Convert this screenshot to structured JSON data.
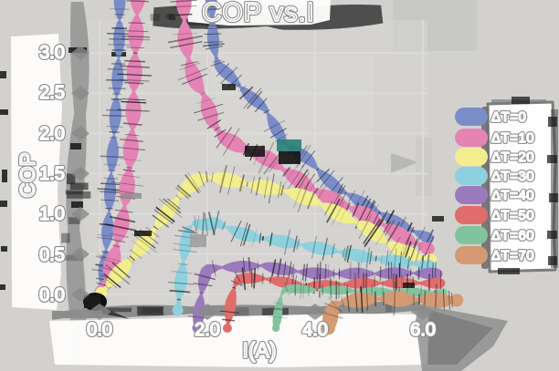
{
  "title": "COP vs.I",
  "axes": {
    "x_label": "I(A)",
    "y_label": "COP",
    "x_ticks": [
      "0.0",
      "2.0",
      "4.0",
      "6.0"
    ],
    "y_ticks": [
      "3.0",
      "2.5",
      "2.0",
      "1.5",
      "1.0",
      "0.5",
      "0.0"
    ]
  },
  "legend": [
    {
      "label": "ΔT=0",
      "color": "#7b8dc8"
    },
    {
      "label": "ΔT=10",
      "color": "#e583b4"
    },
    {
      "label": "ΔT=20",
      "color": "#f3ee8d"
    },
    {
      "label": "ΔT=30",
      "color": "#8ed1de"
    },
    {
      "label": "ΔT=40",
      "color": "#9b79bd"
    },
    {
      "label": "ΔT=50",
      "color": "#e06c6c"
    },
    {
      "label": "ΔT=60",
      "color": "#82c39e"
    },
    {
      "label": "ΔT=70",
      "color": "#d39a74"
    }
  ],
  "style": {
    "background": "#d2d1ce",
    "gridline": "#dcdbd8",
    "spine_dark": "#4e4e4e",
    "spine_light": "#9c9c9c",
    "text_outline": "#8d8d8d"
  },
  "chart_data": {
    "type": "line",
    "title": "COP vs.I",
    "xlabel": "I(A)",
    "ylabel": "COP",
    "xlim": [
      0,
      6.8
    ],
    "ylim": [
      0,
      3.0
    ],
    "grid": true,
    "legend_position": "right",
    "x_tick_values": [
      0,
      2,
      4,
      6
    ],
    "y_tick_values": [
      0,
      0.5,
      1,
      1.5,
      2,
      2.5,
      3
    ],
    "series": [
      {
        "name": "ΔT=0",
        "color": "#7b8dc8",
        "width": 13,
        "segments": [
          [
            [
              0.03,
              0.02
            ],
            [
              0.12,
              0.45
            ],
            [
              0.2,
              1.0
            ],
            [
              0.25,
              1.6
            ],
            [
              0.29,
              2.2
            ],
            [
              0.33,
              3.0
            ],
            [
              0.36,
              3.78
            ]
          ],
          [
            [
              2.09,
              3.78
            ],
            [
              2.13,
              3.1
            ],
            [
              2.2,
              2.85
            ],
            [
              2.4,
              2.72
            ],
            [
              2.75,
              2.47
            ],
            [
              3.05,
              2.3
            ],
            [
              3.25,
              2.05
            ],
            [
              3.42,
              1.86
            ],
            [
              3.65,
              1.76
            ],
            [
              3.87,
              1.67
            ],
            [
              4.15,
              1.47
            ],
            [
              4.42,
              1.32
            ],
            [
              4.7,
              1.22
            ],
            [
              4.95,
              1.12
            ],
            [
              5.2,
              1.03
            ],
            [
              5.45,
              0.94
            ],
            [
              5.75,
              0.83
            ],
            [
              6.12,
              0.71
            ]
          ]
        ]
      },
      {
        "name": "ΔT=10",
        "color": "#e583b4",
        "width": 17,
        "segments": [
          [
            [
              0.03,
              0.02
            ],
            [
              0.25,
              0.45
            ],
            [
              0.42,
              1.0
            ],
            [
              0.54,
              1.6
            ],
            [
              0.63,
              2.2
            ],
            [
              0.69,
              3.0
            ],
            [
              0.73,
              3.78
            ]
          ],
          [
            [
              1.53,
              3.78
            ],
            [
              1.58,
              3.2
            ],
            [
              1.68,
              2.85
            ],
            [
              1.82,
              2.62
            ],
            [
              1.97,
              2.47
            ],
            [
              2.12,
              2.15
            ],
            [
              2.3,
              1.97
            ],
            [
              2.6,
              1.85
            ],
            [
              2.9,
              1.76
            ],
            [
              3.15,
              1.68
            ],
            [
              3.5,
              1.5
            ],
            [
              3.9,
              1.32
            ],
            [
              4.2,
              1.2
            ],
            [
              4.5,
              1.1
            ],
            [
              4.85,
              1.0
            ],
            [
              5.2,
              0.88
            ],
            [
              5.6,
              0.72
            ],
            [
              6.1,
              0.57
            ]
          ]
        ]
      },
      {
        "name": "ΔT=20",
        "color": "#f3ee8d",
        "width": 16,
        "segments": [
          [
            [
              0.03,
              0.02
            ],
            [
              0.35,
              0.28
            ],
            [
              0.64,
              0.5
            ],
            [
              0.98,
              0.8
            ],
            [
              1.2,
              1.0
            ],
            [
              1.42,
              1.18
            ],
            [
              1.6,
              1.32
            ],
            [
              1.78,
              1.41
            ],
            [
              2.0,
              1.46
            ],
            [
              2.2,
              1.44
            ],
            [
              2.45,
              1.4
            ],
            [
              2.7,
              1.36
            ],
            [
              3.0,
              1.32
            ],
            [
              3.35,
              1.28
            ],
            [
              3.6,
              1.24
            ],
            [
              3.85,
              1.18
            ],
            [
              4.15,
              1.1
            ],
            [
              4.45,
              0.99
            ],
            [
              4.75,
              0.9
            ],
            [
              4.95,
              0.84
            ],
            [
              5.3,
              0.68
            ],
            [
              5.6,
              0.56
            ],
            [
              5.9,
              0.49
            ],
            [
              6.15,
              0.45
            ]
          ]
        ]
      },
      {
        "name": "ΔT=30",
        "color": "#8ed1de",
        "width": 14,
        "segments": [
          [
            [
              1.47,
              -0.2
            ],
            [
              1.52,
              0.2
            ],
            [
              1.57,
              0.55
            ],
            [
              1.63,
              0.82
            ],
            [
              1.75,
              0.9
            ],
            [
              1.95,
              0.88
            ],
            [
              2.15,
              0.91
            ],
            [
              2.35,
              0.86
            ],
            [
              2.6,
              0.78
            ],
            [
              2.9,
              0.72
            ],
            [
              3.2,
              0.69
            ],
            [
              3.55,
              0.64
            ],
            [
              3.9,
              0.59
            ],
            [
              4.2,
              0.55
            ],
            [
              4.55,
              0.5
            ],
            [
              4.9,
              0.45
            ],
            [
              5.3,
              0.41
            ],
            [
              5.7,
              0.38
            ],
            [
              6.15,
              0.34
            ]
          ]
        ]
      },
      {
        "name": "ΔT=40",
        "color": "#9b79bd",
        "width": 13,
        "segments": [
          [
            [
              1.84,
              -0.42
            ],
            [
              1.89,
              -0.1
            ],
            [
              1.94,
              0.15
            ],
            [
              2.0,
              0.3
            ],
            [
              2.2,
              0.33
            ],
            [
              2.5,
              0.34
            ],
            [
              2.8,
              0.36
            ],
            [
              3.05,
              0.37
            ],
            [
              3.35,
              0.33
            ],
            [
              3.7,
              0.3
            ],
            [
              4.0,
              0.28
            ],
            [
              4.4,
              0.27
            ],
            [
              4.8,
              0.27
            ],
            [
              5.2,
              0.26
            ],
            [
              5.6,
              0.26
            ],
            [
              6.0,
              0.25
            ],
            [
              6.27,
              0.24
            ]
          ]
        ]
      },
      {
        "name": "ΔT=50",
        "color": "#e06c6c",
        "width": 12,
        "segments": [
          [
            [
              2.38,
              -0.42
            ],
            [
              2.43,
              -0.1
            ],
            [
              2.49,
              0.1
            ],
            [
              2.56,
              0.2
            ],
            [
              2.8,
              0.22
            ],
            [
              3.1,
              0.21
            ],
            [
              3.4,
              0.17
            ],
            [
              3.75,
              0.13
            ],
            [
              4.1,
              0.12
            ],
            [
              4.5,
              0.13
            ],
            [
              4.9,
              0.14
            ],
            [
              5.3,
              0.13
            ],
            [
              5.7,
              0.13
            ],
            [
              6.1,
              0.12
            ],
            [
              6.33,
              0.12
            ]
          ]
        ]
      },
      {
        "name": "ΔT=60",
        "color": "#82c39e",
        "width": 10,
        "segments": [
          [
            [
              3.3,
              -0.42
            ],
            [
              3.35,
              -0.15
            ],
            [
              3.4,
              0.0
            ],
            [
              3.46,
              0.06
            ],
            [
              3.7,
              0.06
            ],
            [
              4.0,
              0.05
            ],
            [
              4.4,
              0.06
            ],
            [
              4.8,
              0.05
            ],
            [
              5.2,
              0.05
            ],
            [
              5.6,
              0.05
            ],
            [
              6.0,
              0.04
            ],
            [
              6.38,
              0.04
            ]
          ]
        ]
      },
      {
        "name": "ΔT=70",
        "color": "#d39a74",
        "width": 17,
        "segments": [
          [
            [
              4.24,
              -0.42
            ],
            [
              4.29,
              -0.25
            ],
            [
              4.36,
              -0.13
            ],
            [
              4.5,
              -0.1
            ],
            [
              4.8,
              -0.08
            ],
            [
              5.1,
              -0.07
            ],
            [
              5.4,
              -0.07
            ],
            [
              5.7,
              -0.08
            ],
            [
              6.0,
              -0.08
            ],
            [
              6.3,
              -0.09
            ],
            [
              6.63,
              -0.08
            ]
          ]
        ]
      }
    ]
  }
}
